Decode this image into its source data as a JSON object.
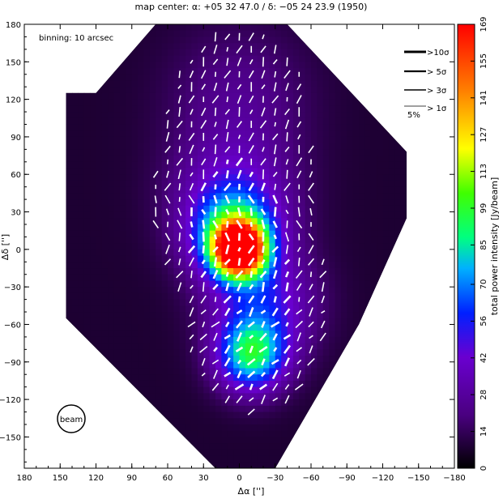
{
  "chart_data": {
    "type": "heatmap",
    "title": "map center: α: +05 32 47.0 / δ: −05 24 23.9 (1950)",
    "xlabel": "Δα ['']",
    "ylabel": "Δδ ['']",
    "colorbar_label": "total power intensity [Jy/beam]",
    "xlim": [
      180,
      -180
    ],
    "ylim": [
      -175,
      180
    ],
    "x_ticks": [
      "180",
      "150",
      "120",
      "90",
      "60",
      "30",
      "0",
      "−30",
      "−60",
      "−90",
      "−120",
      "−150",
      "−180"
    ],
    "y_ticks": [
      "180",
      "150",
      "120",
      "90",
      "60",
      "30",
      "0",
      "−30",
      "−60",
      "−90",
      "−120",
      "−150"
    ],
    "colorbar_range": [
      0,
      169
    ],
    "colorbar_ticks": [
      "0",
      "14",
      "28",
      "42",
      "56",
      "70",
      "85",
      "99",
      "113",
      "127",
      "141",
      "155",
      "169"
    ],
    "annotations": {
      "binning": "binning: 10 arcsec",
      "beam": "beam"
    },
    "legend": {
      "placement": "top-right",
      "entries": [
        ">10σ",
        "> 5σ",
        "> 3σ",
        "> 1σ"
      ],
      "scale_label": "5%"
    },
    "components": [
      {
        "x": 0,
        "y": 0,
        "peak": 169,
        "sigma": 14
      },
      {
        "x": 5,
        "y": 10,
        "peak": 70,
        "sigma": 24
      },
      {
        "x": -10,
        "y": -85,
        "peak": 75,
        "sigma": 20
      },
      {
        "x": -20,
        "y": -45,
        "peak": 40,
        "sigma": 30
      },
      {
        "x": 5,
        "y": 40,
        "peak": 32,
        "sigma": 35
      },
      {
        "x": 0,
        "y": 120,
        "peak": 16,
        "sigma": 40
      }
    ],
    "background_level": 8,
    "vector_field": {
      "spacing": 10,
      "angle_ranges_deg": [
        {
          "y_min": 50,
          "y_max": 180,
          "angle": 20
        },
        {
          "y_min": 10,
          "y_max": 50,
          "angle": -15
        },
        {
          "y_min": -40,
          "y_max": 10,
          "angle": 25
        },
        {
          "y_min": -180,
          "y_max": -40,
          "angle": 40
        }
      ]
    }
  },
  "colors": {
    "background": "#ffffff",
    "mask": "#000000",
    "vectors": "#ffffff",
    "colormap": [
      "#000000",
      "#4a0080",
      "#6a00d0",
      "#0020ff",
      "#00b0ff",
      "#00ff40",
      "#ffff00",
      "#ff6000",
      "#ff0000"
    ]
  }
}
